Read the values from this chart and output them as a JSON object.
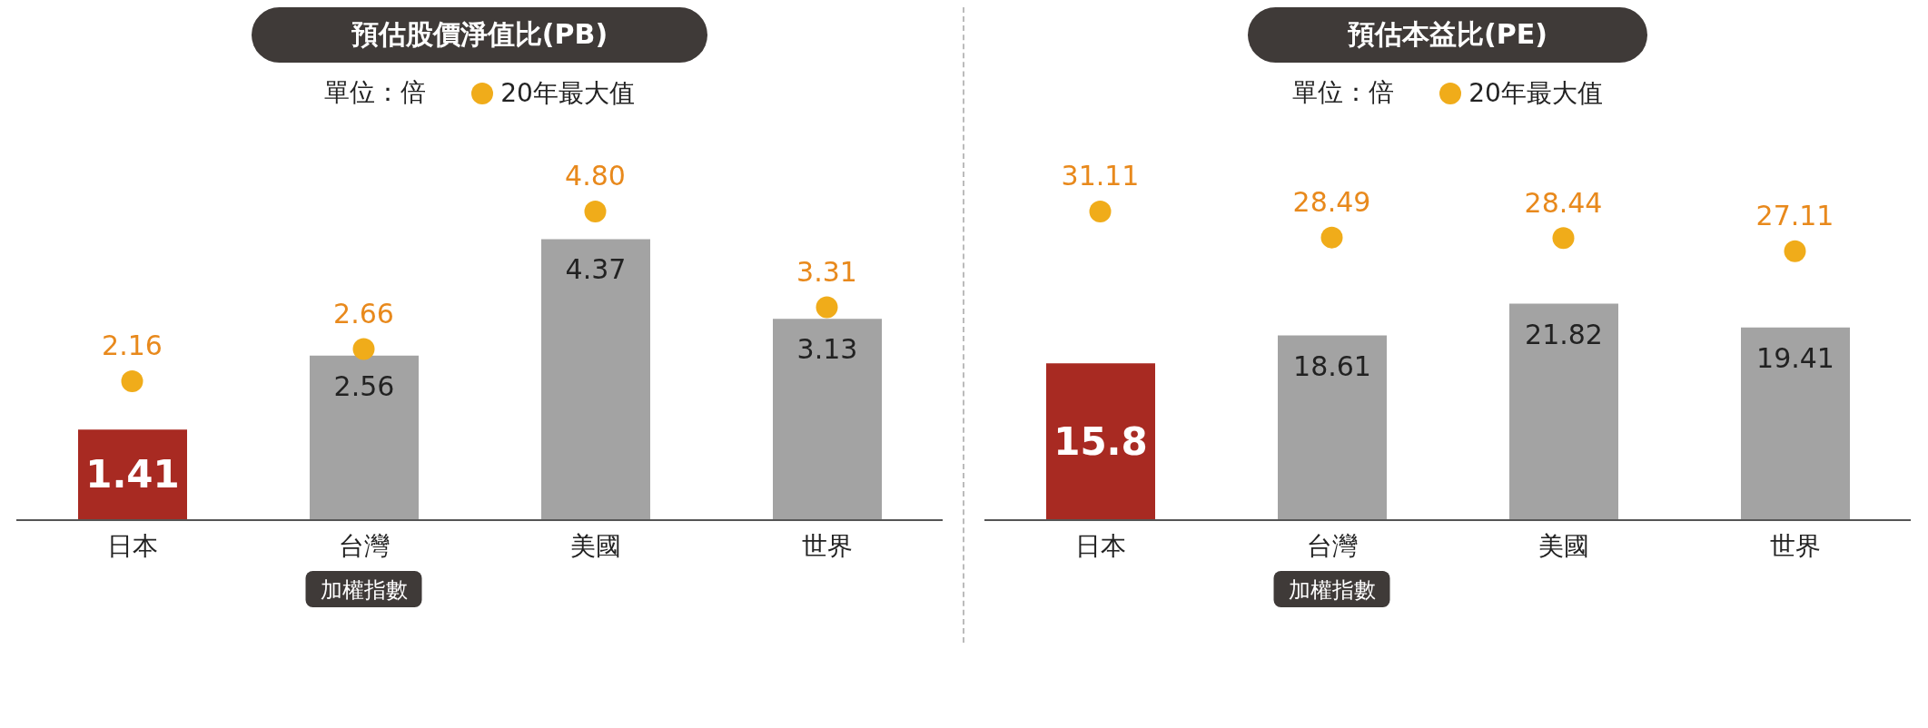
{
  "chart_data": [
    {
      "type": "bar",
      "title": "預估股價淨值比(PB)",
      "subtitle": "單位：倍",
      "categories": [
        "日本",
        "台灣加權指數",
        "美國",
        "世界"
      ],
      "data_labels": true,
      "legend": "top",
      "series": [
        {
          "colors": [
            "#a82a22",
            "#a3a3a3",
            "#a3a3a3",
            "#a3a3a3"
          ],
          "values": [
            1.41,
            2.56,
            4.37,
            3.13
          ]
        },
        {
          "type": "scatter",
          "name": "20年最大值",
          "color": "#f0ac1a",
          "x": [
            "日本",
            "台灣加權指數",
            "美國",
            "世界"
          ],
          "values": [
            2.16,
            2.66,
            4.8,
            3.31
          ],
          "value_labels": [
            "2.16",
            "2.66",
            "4.80",
            "3.31"
          ]
        }
      ]
    },
    {
      "type": "bar",
      "title": "預估本益比(PE)",
      "subtitle": "單位：倍",
      "categories": [
        "日本",
        "台灣加權指數",
        "美國",
        "世界"
      ],
      "data_labels": true,
      "legend": "top",
      "series": [
        {
          "colors": [
            "#a82a22",
            "#a3a3a3",
            "#a3a3a3",
            "#a3a3a3"
          ],
          "values": [
            15.8,
            18.61,
            21.82,
            19.41
          ]
        },
        {
          "type": "scatter",
          "name": "20年最大值",
          "color": "#f0ac1a",
          "x": [
            "日本",
            "台灣加權指數",
            "美國",
            "世界"
          ],
          "values": [
            31.11,
            28.49,
            28.44,
            27.11
          ],
          "value_labels": [
            "31.11",
            "28.49",
            "28.44",
            "27.11"
          ]
        }
      ]
    }
  ]
}
